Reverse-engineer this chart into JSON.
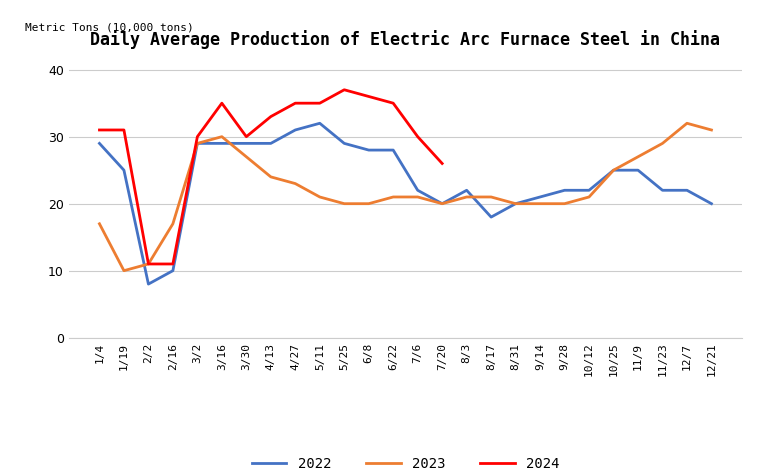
{
  "title": "Daily Average Production of Electric Arc Furnace Steel in China",
  "ylabel": "Metric Tons (10,000 tons)",
  "ylim": [
    0,
    42
  ],
  "yticks": [
    0,
    10,
    20,
    30,
    40
  ],
  "x_labels": [
    "1/4",
    "1/19",
    "2/2",
    "2/16",
    "3/2",
    "3/16",
    "3/30",
    "4/13",
    "4/27",
    "5/11",
    "5/25",
    "6/8",
    "6/22",
    "7/6",
    "7/20",
    "8/3",
    "8/17",
    "8/31",
    "9/14",
    "9/28",
    "10/12",
    "10/25",
    "11/9",
    "11/23",
    "12/7",
    "12/21"
  ],
  "series_2022": [
    29,
    25,
    8,
    10,
    29,
    29,
    29,
    29,
    31,
    32,
    29,
    28,
    28,
    22,
    20,
    22,
    18,
    20,
    21,
    22,
    22,
    25,
    25,
    22,
    22,
    20
  ],
  "series_2023": [
    17,
    10,
    11,
    17,
    29,
    30,
    27,
    24,
    23,
    21,
    20,
    20,
    21,
    21,
    20,
    21,
    21,
    20,
    20,
    20,
    21,
    25,
    27,
    29,
    32,
    31
  ],
  "series_2024": [
    31,
    31,
    11,
    11,
    30,
    35,
    30,
    33,
    35,
    35,
    37,
    36,
    35,
    30,
    26,
    null,
    null,
    null,
    null,
    null,
    null,
    null,
    null,
    null,
    null,
    null
  ],
  "color_2022": "#4472C4",
  "color_2023": "#ED7D31",
  "color_2024": "#FF0000",
  "linewidth": 2.0,
  "background_color": "#FFFFFF",
  "legend_labels": [
    "2022",
    "2023",
    "2024"
  ]
}
